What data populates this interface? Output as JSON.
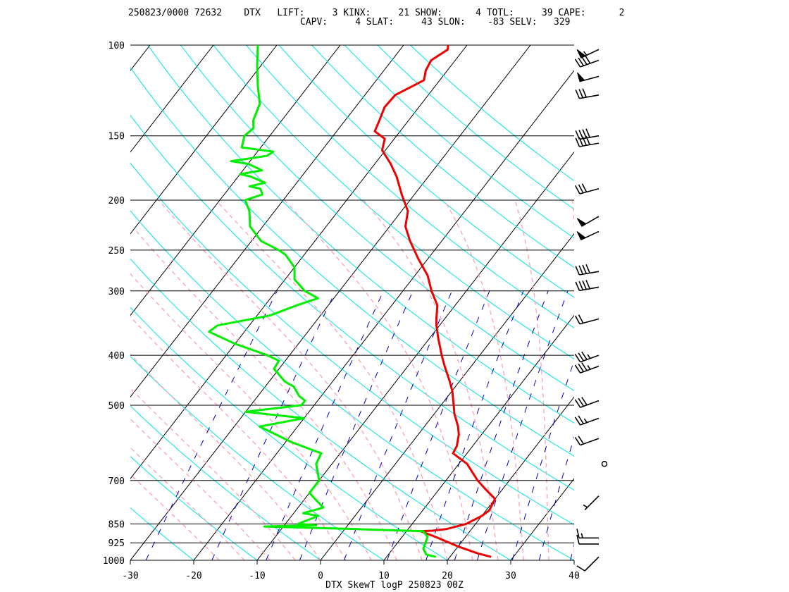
{
  "header": {
    "line1": "250823/0000 72632    DTX   LIFT:     3 KINX:     21 SHOW:      4 TOTL:     39 CAPE:      2",
    "line2": "CAPV:     4 SLAT:     43 SLON:    -83 SELV:   329"
  },
  "footer_title": "DTX SkewT logP 250823 00Z",
  "colors": {
    "isotherm": "#000000",
    "dry_adiabat": "#00e5e5",
    "moist_adiabat": "#ffa0b4",
    "mixing_ratio": "#0000cc",
    "temperature": "#ee0000",
    "dewpoint": "#00ee00",
    "wind_barb": "#000000"
  },
  "chart_data": {
    "type": "line",
    "title": "DTX SkewT logP 250823 00Z",
    "xlabel": "",
    "ylabel": "",
    "xlim": [
      -30,
      40
    ],
    "ylim": [
      1000,
      100
    ],
    "y_scale": "log",
    "skew": true,
    "x_ticks": [
      -30,
      -20,
      -10,
      0,
      10,
      20,
      30,
      40
    ],
    "pressure_levels": [
      100,
      150,
      200,
      250,
      300,
      400,
      500,
      700,
      850,
      925,
      1000
    ],
    "series": [
      {
        "name": "",
        "role": "temperature",
        "points": [
          [
            985,
            26.5
          ],
          [
            970,
            24.0
          ],
          [
            940,
            20.0
          ],
          [
            900,
            15.2
          ],
          [
            878,
            12.2
          ],
          [
            876,
            14.0
          ],
          [
            870,
            16.0
          ],
          [
            850,
            18.5
          ],
          [
            820,
            20.0
          ],
          [
            800,
            20.5
          ],
          [
            760,
            20.0
          ],
          [
            730,
            17.5
          ],
          [
            700,
            15.0
          ],
          [
            650,
            11.3
          ],
          [
            620,
            7.8
          ],
          [
            600,
            7.5
          ],
          [
            570,
            6.4
          ],
          [
            550,
            5.3
          ],
          [
            520,
            3.2
          ],
          [
            500,
            2.0
          ],
          [
            470,
            0.1
          ],
          [
            450,
            -1.5
          ],
          [
            420,
            -4.2
          ],
          [
            400,
            -6.0
          ],
          [
            370,
            -8.7
          ],
          [
            350,
            -10.5
          ],
          [
            340,
            -11.3
          ],
          [
            320,
            -12.8
          ],
          [
            300,
            -15.5
          ],
          [
            280,
            -18.0
          ],
          [
            260,
            -21.5
          ],
          [
            240,
            -25.0
          ],
          [
            225,
            -27.5
          ],
          [
            210,
            -29.0
          ],
          [
            195,
            -32.0
          ],
          [
            180,
            -35.0
          ],
          [
            170,
            -37.5
          ],
          [
            160,
            -40.5
          ],
          [
            152,
            -41.5
          ],
          [
            147,
            -44.0
          ],
          [
            140,
            -44.6
          ],
          [
            132,
            -45.4
          ],
          [
            125,
            -45.2
          ],
          [
            117,
            -42.5
          ],
          [
            112,
            -43.4
          ],
          [
            107,
            -43.8
          ],
          [
            102,
            -42.5
          ],
          [
            100,
            -43.0
          ]
        ]
      },
      {
        "name": "",
        "role": "dewpoint",
        "points": [
          [
            985,
            17.8
          ],
          [
            975,
            16.0
          ],
          [
            950,
            14.8
          ],
          [
            900,
            14.0
          ],
          [
            878,
            12.6
          ],
          [
            870,
            2.0
          ],
          [
            860,
            -13.0
          ],
          [
            855,
            -5.0
          ],
          [
            850,
            -8.0
          ],
          [
            820,
            -5.8
          ],
          [
            810,
            -8.5
          ],
          [
            790,
            -6.0
          ],
          [
            765,
            -8.0
          ],
          [
            740,
            -10.0
          ],
          [
            700,
            -10.0
          ],
          [
            650,
            -12.5
          ],
          [
            620,
            -13.0
          ],
          [
            590,
            -19.0
          ],
          [
            550,
            -26.0
          ],
          [
            530,
            -20.0
          ],
          [
            515,
            -30.0
          ],
          [
            500,
            -22.0
          ],
          [
            490,
            -22.0
          ],
          [
            480,
            -23.5
          ],
          [
            460,
            -25.5
          ],
          [
            450,
            -27.5
          ],
          [
            425,
            -30.8
          ],
          [
            410,
            -31.0
          ],
          [
            400,
            -33.5
          ],
          [
            380,
            -40.0
          ],
          [
            360,
            -45.6
          ],
          [
            350,
            -45.0
          ],
          [
            335,
            -38.0
          ],
          [
            320,
            -35.0
          ],
          [
            310,
            -32.5
          ],
          [
            300,
            -35.5
          ],
          [
            285,
            -38.5
          ],
          [
            270,
            -40.0
          ],
          [
            255,
            -43.0
          ],
          [
            250,
            -44.6
          ],
          [
            240,
            -48.5
          ],
          [
            225,
            -52.0
          ],
          [
            210,
            -54.0
          ],
          [
            200,
            -56.0
          ],
          [
            195,
            -54.0
          ],
          [
            190,
            -55.0
          ],
          [
            188,
            -57.0
          ],
          [
            185,
            -55.0
          ],
          [
            180,
            -58.0
          ],
          [
            178,
            -60.0
          ],
          [
            175,
            -57.0
          ],
          [
            170,
            -60.0
          ],
          [
            168,
            -63.0
          ],
          [
            164,
            -58.0
          ],
          [
            161,
            -57.5
          ],
          [
            158,
            -63.0
          ],
          [
            150,
            -64.0
          ],
          [
            145,
            -63.5
          ],
          [
            140,
            -64.5
          ],
          [
            130,
            -65.5
          ],
          [
            120,
            -68.0
          ],
          [
            110,
            -70.5
          ],
          [
            100,
            -73.0
          ]
        ]
      }
    ],
    "winds": [
      {
        "p": 985,
        "dir": 225,
        "spd": 10
      },
      {
        "p": 930,
        "dir": 270,
        "spd": 10
      },
      {
        "p": 905,
        "dir": 270,
        "spd": 15
      },
      {
        "p": 750,
        "dir": 225,
        "spd": 5
      },
      {
        "p": 650,
        "dir": 0,
        "spd": 0
      },
      {
        "p": 580,
        "dir": 250,
        "spd": 20
      },
      {
        "p": 530,
        "dir": 250,
        "spd": 25
      },
      {
        "p": 490,
        "dir": 250,
        "spd": 30
      },
      {
        "p": 420,
        "dir": 250,
        "spd": 35
      },
      {
        "p": 400,
        "dir": 250,
        "spd": 35
      },
      {
        "p": 340,
        "dir": 255,
        "spd": 20
      },
      {
        "p": 295,
        "dir": 260,
        "spd": 40
      },
      {
        "p": 275,
        "dir": 260,
        "spd": 40
      },
      {
        "p": 230,
        "dir": 245,
        "spd": 50
      },
      {
        "p": 215,
        "dir": 240,
        "spd": 50
      },
      {
        "p": 190,
        "dir": 255,
        "spd": 30
      },
      {
        "p": 155,
        "dir": 260,
        "spd": 40
      },
      {
        "p": 150,
        "dir": 260,
        "spd": 40
      },
      {
        "p": 125,
        "dir": 260,
        "spd": 30
      },
      {
        "p": 115,
        "dir": 255,
        "spd": 50
      },
      {
        "p": 107,
        "dir": 250,
        "spd": 40
      },
      {
        "p": 102,
        "dir": 245,
        "spd": 55
      }
    ]
  }
}
